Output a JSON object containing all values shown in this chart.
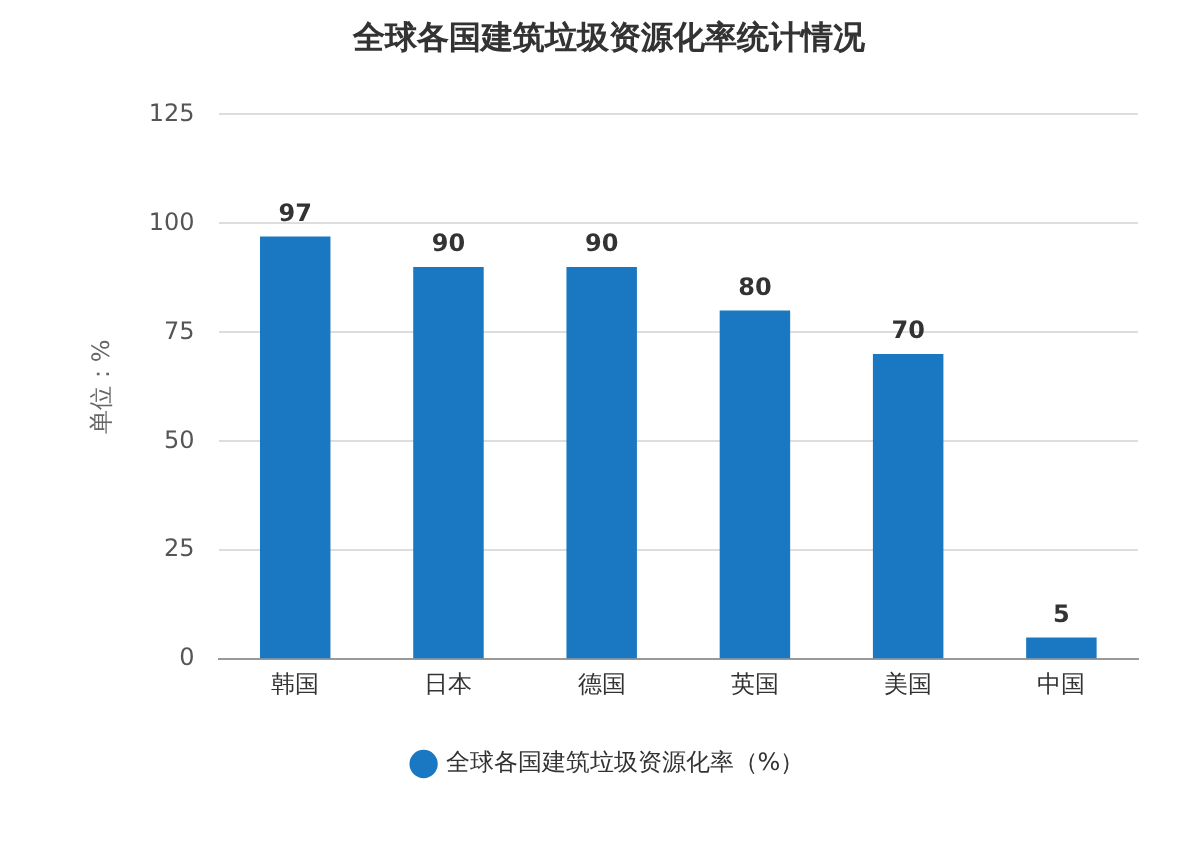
{
  "chart_data": {
    "type": "bar",
    "title": "全球各国建筑垃圾资源化率统计情况",
    "ylabel": "单位：%",
    "categories": [
      "韩国",
      "日本",
      "德国",
      "英国",
      "美国",
      "中国"
    ],
    "series": [
      {
        "name": "全球各国建筑垃圾资源化率（%）",
        "color": "#1a78c2",
        "values": [
          97,
          90,
          90,
          80,
          70,
          5
        ]
      }
    ],
    "ylim": [
      0,
      125
    ],
    "yticks": [
      0,
      25,
      50,
      75,
      100,
      125
    ],
    "grid": "y",
    "legend": "bottom",
    "data_labels": true
  }
}
